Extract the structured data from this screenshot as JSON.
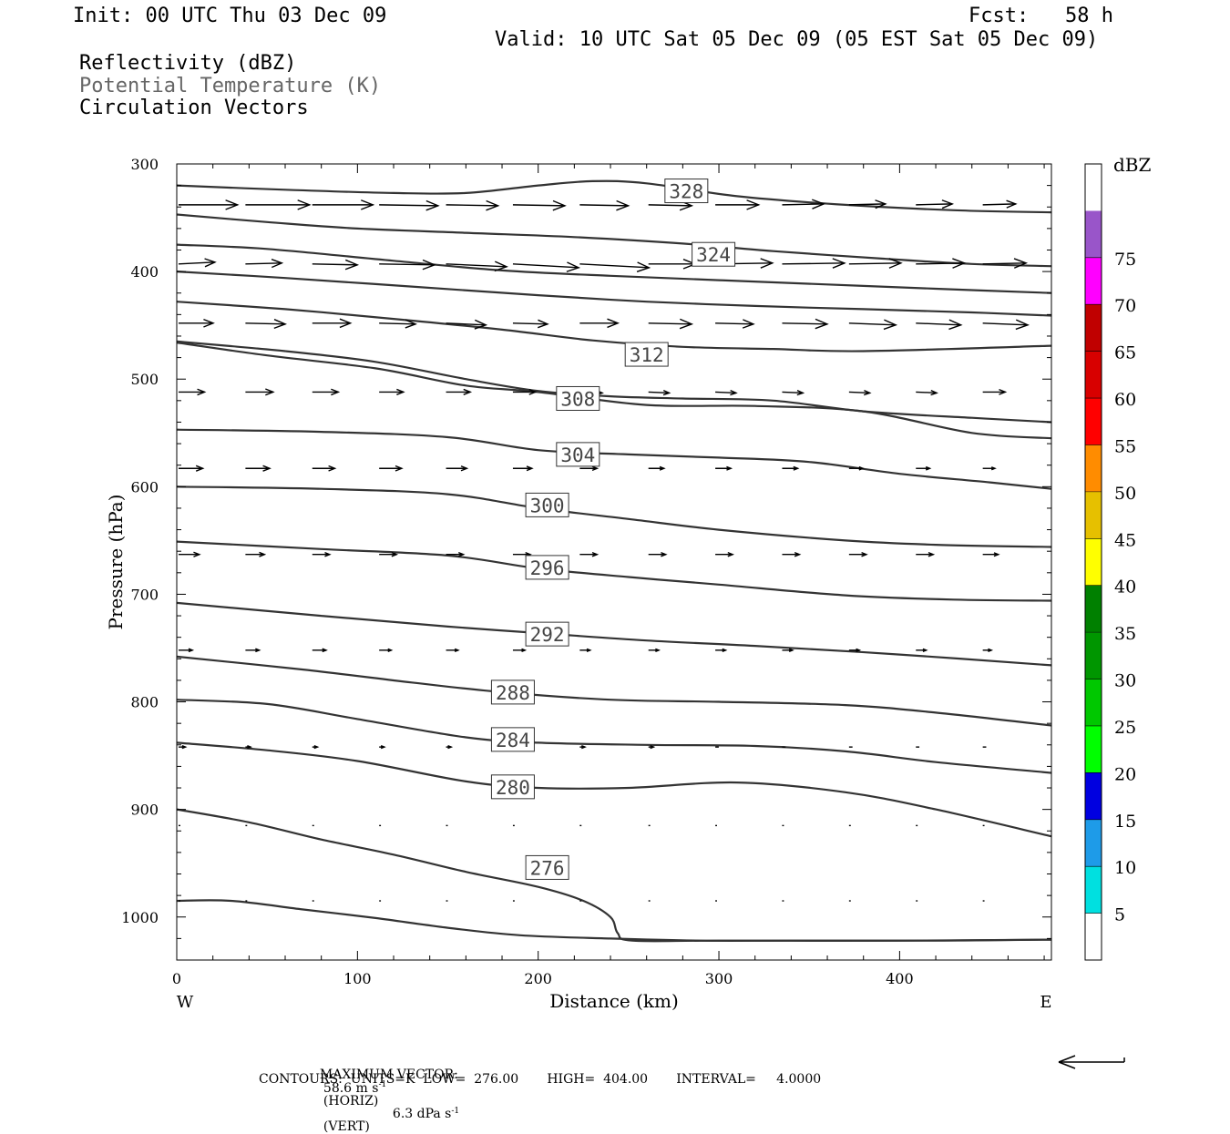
{
  "header": {
    "init": "Init: 00 UTC Thu 03 Dec 09",
    "fcst": "Fcst:   58 h",
    "valid": "Valid: 10 UTC Sat 05 Dec 09 (05 EST Sat 05 Dec 09)",
    "field1": "Reflectivity (dBZ)",
    "field2": "Potential Temperature (K)",
    "field3": "Circulation Vectors"
  },
  "footer": {
    "max_vector_label": "MAXIMUM VECTOR:",
    "max_vector_horiz": "58.6 m s",
    "horiz_exp": "-1",
    "horiz_tag": "(HORIZ)",
    "max_vector_vert": "6.3 dPa s",
    "vert_exp": "-1",
    "vert_tag": "(VERT)",
    "contours": "CONTOURS:  UNITS=K  LOW=  276.00       HIGH=  404.00       INTERVAL=     4.0000"
  },
  "colors": {
    "contour": "#333333",
    "frame": "#000000",
    "colorbar": [
      "#ffffff",
      "#00e0e0",
      "#1e9be8",
      "#0000e0",
      "#00ff00",
      "#00c800",
      "#009600",
      "#008000",
      "#ffff00",
      "#e6c000",
      "#ff8c00",
      "#ff0000",
      "#d80000",
      "#c00000",
      "#ff00ff",
      "#9955c9",
      "#ffffff"
    ]
  },
  "chart_data": {
    "type": "contour",
    "xlabel": "Distance (km)",
    "ylabel": "Pressure (hPa)",
    "xlim": [
      0,
      484
    ],
    "ylim": [
      300,
      1040
    ],
    "x_ticks": [
      0,
      100,
      200,
      300,
      400
    ],
    "y_ticks": [
      300,
      400,
      500,
      600,
      700,
      800,
      900,
      1000
    ],
    "x_end_labels": {
      "left": "W",
      "right": "E"
    },
    "colorbar": {
      "unit": "dBZ",
      "levels": [
        5,
        10,
        15,
        20,
        25,
        30,
        35,
        40,
        45,
        50,
        55,
        60,
        65,
        70,
        75
      ]
    },
    "isentropes": [
      {
        "theta": 328,
        "label": "328",
        "label_xy": [
          282,
          325
        ],
        "points": [
          [
            0,
            320
          ],
          [
            60,
            324
          ],
          [
            120,
            327
          ],
          [
            160,
            327
          ],
          [
            200,
            320
          ],
          [
            230,
            316
          ],
          [
            260,
            318
          ],
          [
            310,
            330
          ],
          [
            370,
            338
          ],
          [
            430,
            343
          ],
          [
            484,
            345
          ]
        ]
      },
      {
        "theta": 324,
        "label": "324",
        "label_xy": [
          297,
          384
        ],
        "points": [
          [
            0,
            347
          ],
          [
            50,
            354
          ],
          [
            100,
            360
          ],
          [
            160,
            364
          ],
          [
            220,
            368
          ],
          [
            280,
            374
          ],
          [
            330,
            381
          ],
          [
            390,
            388
          ],
          [
            440,
            393
          ],
          [
            484,
            395
          ]
        ]
      },
      {
        "theta": null,
        "label": "",
        "points": [
          [
            0,
            375
          ],
          [
            50,
            379
          ],
          [
            120,
            390
          ],
          [
            180,
            399
          ],
          [
            240,
            404
          ],
          [
            300,
            408
          ],
          [
            360,
            412
          ],
          [
            420,
            416
          ],
          [
            484,
            420
          ]
        ]
      },
      {
        "theta": null,
        "label": "",
        "points": [
          [
            0,
            400
          ],
          [
            60,
            406
          ],
          [
            130,
            414
          ],
          [
            200,
            422
          ],
          [
            260,
            428
          ],
          [
            320,
            432
          ],
          [
            380,
            435
          ],
          [
            440,
            438
          ],
          [
            484,
            441
          ]
        ]
      },
      {
        "theta": 312,
        "label": "312",
        "label_xy": [
          260,
          477
        ],
        "points": [
          [
            0,
            428
          ],
          [
            60,
            435
          ],
          [
            120,
            444
          ],
          [
            180,
            454
          ],
          [
            230,
            464
          ],
          [
            280,
            470
          ],
          [
            330,
            472
          ],
          [
            380,
            474
          ],
          [
            484,
            469
          ]
        ]
      },
      {
        "theta": null,
        "label": "",
        "points": [
          [
            0,
            465
          ],
          [
            60,
            474
          ],
          [
            110,
            484
          ],
          [
            160,
            500
          ],
          [
            200,
            511
          ],
          [
            240,
            516
          ],
          [
            280,
            518
          ],
          [
            330,
            520
          ],
          [
            380,
            530
          ],
          [
            440,
            536
          ],
          [
            484,
            540
          ]
        ]
      },
      {
        "theta": 308,
        "label": "308",
        "label_xy": [
          222,
          518
        ],
        "points": [
          [
            0,
            466
          ],
          [
            50,
            478
          ],
          [
            110,
            490
          ],
          [
            160,
            506
          ],
          [
            200,
            512
          ],
          [
            260,
            524
          ],
          [
            320,
            525
          ],
          [
            380,
            530
          ],
          [
            440,
            550
          ],
          [
            484,
            555
          ]
        ]
      },
      {
        "theta": 304,
        "label": "304",
        "label_xy": [
          222,
          570
        ],
        "points": [
          [
            0,
            547
          ],
          [
            80,
            549
          ],
          [
            150,
            554
          ],
          [
            200,
            566
          ],
          [
            250,
            570
          ],
          [
            300,
            573
          ],
          [
            350,
            577
          ],
          [
            400,
            588
          ],
          [
            450,
            596
          ],
          [
            484,
            602
          ]
        ]
      },
      {
        "theta": 300,
        "label": "300",
        "label_xy": [
          205,
          617
        ],
        "points": [
          [
            0,
            600
          ],
          [
            80,
            602
          ],
          [
            150,
            607
          ],
          [
            200,
            620
          ],
          [
            250,
            630
          ],
          [
            300,
            640
          ],
          [
            370,
            650
          ],
          [
            420,
            654
          ],
          [
            484,
            656
          ]
        ]
      },
      {
        "theta": 296,
        "label": "296",
        "label_xy": [
          205,
          675
        ],
        "points": [
          [
            0,
            651
          ],
          [
            80,
            658
          ],
          [
            150,
            664
          ],
          [
            200,
            676
          ],
          [
            250,
            684
          ],
          [
            300,
            691
          ],
          [
            370,
            701
          ],
          [
            430,
            705
          ],
          [
            484,
            706
          ]
        ]
      },
      {
        "theta": 292,
        "label": "292",
        "label_xy": [
          205,
          737
        ],
        "points": [
          [
            0,
            708
          ],
          [
            80,
            720
          ],
          [
            150,
            730
          ],
          [
            200,
            736
          ],
          [
            260,
            743
          ],
          [
            320,
            748
          ],
          [
            400,
            756
          ],
          [
            484,
            766
          ]
        ]
      },
      {
        "theta": 288,
        "label": "288",
        "label_xy": [
          186,
          791
        ],
        "points": [
          [
            0,
            758
          ],
          [
            70,
            770
          ],
          [
            130,
            782
          ],
          [
            180,
            791
          ],
          [
            240,
            798
          ],
          [
            300,
            800
          ],
          [
            370,
            803
          ],
          [
            420,
            810
          ],
          [
            484,
            822
          ]
        ]
      },
      {
        "theta": 284,
        "label": "284",
        "label_xy": [
          186,
          835
        ],
        "points": [
          [
            0,
            798
          ],
          [
            50,
            802
          ],
          [
            100,
            816
          ],
          [
            160,
            833
          ],
          [
            200,
            838
          ],
          [
            260,
            840
          ],
          [
            320,
            841
          ],
          [
            370,
            846
          ],
          [
            420,
            856
          ],
          [
            484,
            866
          ]
        ]
      },
      {
        "theta": 280,
        "label": "280",
        "label_xy": [
          186,
          879
        ],
        "points": [
          [
            0,
            838
          ],
          [
            50,
            845
          ],
          [
            100,
            855
          ],
          [
            160,
            874
          ],
          [
            200,
            880
          ],
          [
            250,
            880
          ],
          [
            310,
            875
          ],
          [
            370,
            884
          ],
          [
            420,
            900
          ],
          [
            484,
            925
          ]
        ]
      },
      {
        "theta": 276,
        "label": "276",
        "label_xy": [
          205,
          954
        ],
        "points": [
          [
            0,
            900
          ],
          [
            40,
            912
          ],
          [
            80,
            928
          ],
          [
            120,
            942
          ],
          [
            160,
            958
          ],
          [
            200,
            972
          ],
          [
            225,
            985
          ],
          [
            240,
            1000
          ],
          [
            244,
            1015
          ],
          [
            252,
            1022
          ],
          [
            300,
            1022
          ],
          [
            400,
            1022
          ],
          [
            484,
            1021
          ]
        ]
      },
      {
        "theta": null,
        "label": "",
        "points": [
          [
            0,
            985
          ],
          [
            30,
            985
          ],
          [
            70,
            993
          ],
          [
            110,
            1001
          ],
          [
            150,
            1010
          ],
          [
            190,
            1017
          ],
          [
            240,
            1020
          ],
          [
            290,
            1022
          ],
          [
            340,
            1022
          ],
          [
            420,
            1022
          ],
          [
            484,
            1021
          ]
        ]
      }
    ],
    "vector_rows": [
      {
        "p": 338,
        "x": [
          0,
          37,
          74,
          111,
          148,
          185,
          222,
          260,
          297,
          334,
          371,
          408,
          445
        ],
        "u": [
          34,
          37,
          35,
          34,
          30,
          30,
          28,
          25,
          25,
          24,
          21,
          21,
          19
        ],
        "w": [
          0,
          0,
          0,
          1,
          1,
          1,
          1,
          1,
          0,
          -1,
          -1,
          -1,
          -1
        ]
      },
      {
        "p": 393,
        "x": [
          0,
          37,
          74,
          111,
          148,
          185,
          222,
          260,
          297,
          334,
          371,
          408,
          445
        ],
        "u": [
          21,
          21,
          26,
          32,
          35,
          38,
          40,
          27,
          33,
          36,
          30,
          28,
          25
        ],
        "w": [
          -2,
          -1,
          1,
          1,
          3,
          4,
          4,
          0,
          -1,
          -1,
          -1,
          -1,
          -1
        ]
      },
      {
        "p": 448,
        "x": [
          0,
          37,
          74,
          111,
          148,
          185,
          222,
          260,
          297,
          334,
          371,
          408,
          445
        ],
        "u": [
          20,
          23,
          22,
          21,
          23,
          20,
          22,
          25,
          22,
          26,
          27,
          26,
          26
        ],
        "w": [
          0,
          1,
          0,
          1,
          2,
          1,
          0,
          1,
          1,
          1,
          2,
          2,
          2
        ]
      },
      {
        "p": 512,
        "x": [
          0,
          37,
          74,
          111,
          148,
          185,
          222,
          260,
          297,
          334,
          371,
          408,
          445
        ],
        "u": [
          15,
          16,
          15,
          14,
          14,
          13,
          13,
          12,
          12,
          12,
          12,
          12,
          13
        ],
        "w": [
          0,
          0,
          0,
          0,
          0,
          0,
          1,
          1,
          1,
          1,
          1,
          1,
          0
        ]
      },
      {
        "p": 583,
        "x": [
          0,
          37,
          74,
          111,
          148,
          185,
          222,
          260,
          297,
          334,
          371,
          408,
          445
        ],
        "u": [
          14,
          14,
          13,
          13,
          12,
          11,
          10,
          9,
          9,
          9,
          8,
          8,
          7
        ],
        "w": [
          0,
          0,
          0,
          0,
          0,
          0,
          0,
          0,
          0,
          0,
          0,
          0,
          0
        ]
      },
      {
        "p": 663,
        "x": [
          0,
          37,
          74,
          111,
          148,
          185,
          222,
          260,
          297,
          334,
          371,
          408,
          445
        ],
        "u": [
          12,
          11,
          10,
          10,
          10,
          10,
          10,
          10,
          10,
          10,
          10,
          10,
          9
        ],
        "w": [
          0,
          0,
          0,
          0,
          0,
          0,
          0,
          0,
          0,
          0,
          0,
          0,
          0
        ]
      },
      {
        "p": 752,
        "x": [
          0,
          37,
          74,
          111,
          148,
          185,
          222,
          260,
          297,
          334,
          371,
          408,
          445
        ],
        "u": [
          8,
          8,
          8,
          7,
          7,
          7,
          6,
          6,
          6,
          6,
          6,
          6,
          5
        ],
        "w": [
          0,
          0,
          0,
          0,
          0,
          0,
          0,
          0,
          0,
          0,
          0,
          0,
          0
        ]
      },
      {
        "p": 842,
        "x": [
          0,
          37,
          74,
          111,
          148,
          185,
          222,
          260,
          297,
          334,
          371,
          408,
          445
        ],
        "u": [
          4,
          3,
          3,
          3,
          3,
          3,
          3,
          3,
          2,
          2,
          2,
          2,
          2
        ],
        "w": [
          0,
          0,
          0,
          0,
          0,
          0,
          0,
          0,
          0,
          0,
          0,
          0,
          0
        ]
      },
      {
        "p": 915,
        "x": [
          0,
          37,
          74,
          111,
          148,
          185,
          222,
          260,
          297,
          334,
          371,
          408,
          445
        ],
        "u": [
          1,
          1,
          1,
          1,
          1,
          1,
          1,
          1,
          1,
          1,
          1,
          1,
          1
        ],
        "w": [
          0,
          0,
          0,
          0,
          0,
          0,
          0,
          0,
          0,
          0,
          0,
          0,
          0
        ]
      },
      {
        "p": 985,
        "x": [
          0,
          37,
          74,
          111,
          148,
          185,
          222,
          260,
          297,
          334,
          371,
          408,
          445
        ],
        "u": [
          1,
          1,
          1,
          1,
          1,
          1,
          1,
          1,
          1,
          1,
          1,
          1,
          1
        ],
        "w": [
          0,
          0,
          0,
          0,
          0,
          0,
          0,
          0,
          0,
          0,
          0,
          0,
          0
        ]
      }
    ]
  }
}
